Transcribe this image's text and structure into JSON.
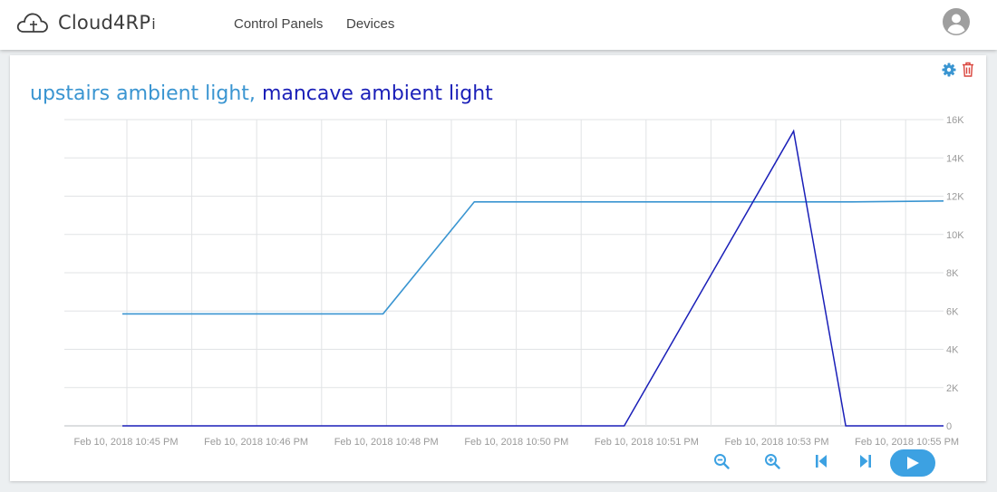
{
  "header": {
    "brand_main": "Cloud4RP",
    "brand_suffix": "i",
    "nav": [
      "Control Panels",
      "Devices"
    ]
  },
  "panel": {
    "title_series_1": "upstairs ambient light,",
    "title_series_2": "mancave ambient light"
  },
  "colors": {
    "series_1": "#3a95d1",
    "series_2": "#1a1fb8",
    "accent": "#3ca1e2",
    "delete": "#d9443c"
  },
  "icons": [
    "cloud-logo-icon",
    "user-avatar-icon",
    "gear-icon",
    "trash-icon",
    "zoom-out-icon",
    "zoom-in-icon",
    "skip-back-icon",
    "skip-forward-icon",
    "play-icon"
  ],
  "chart_data": {
    "type": "line",
    "x_ticks": [
      "Feb 10, 2018 10:45 PM",
      "Feb 10, 2018 10:46 PM",
      "Feb 10, 2018 10:48 PM",
      "Feb 10, 2018 10:50 PM",
      "Feb 10, 2018 10:51 PM",
      "Feb 10, 2018 10:53 PM",
      "Feb 10, 2018 10:55 PM"
    ],
    "y_ticks": [
      "0",
      "2K",
      "4K",
      "6K",
      "8K",
      "10K",
      "12K",
      "14K",
      "16K"
    ],
    "ylim": [
      0,
      16000
    ],
    "grid": true,
    "x_unit": "minutes after 10:45 PM",
    "series": [
      {
        "name": "upstairs ambient light",
        "points": [
          [
            0,
            5850
          ],
          [
            4,
            5850
          ],
          [
            5.4,
            11700
          ],
          [
            10,
            11700
          ],
          [
            11.2,
            11700
          ],
          [
            12.6,
            11750
          ]
        ]
      },
      {
        "name": "mancave ambient light",
        "points": [
          [
            0,
            0
          ],
          [
            7.7,
            0
          ],
          [
            10.3,
            15400
          ],
          [
            11.1,
            0
          ],
          [
            12.6,
            0
          ]
        ]
      }
    ]
  }
}
